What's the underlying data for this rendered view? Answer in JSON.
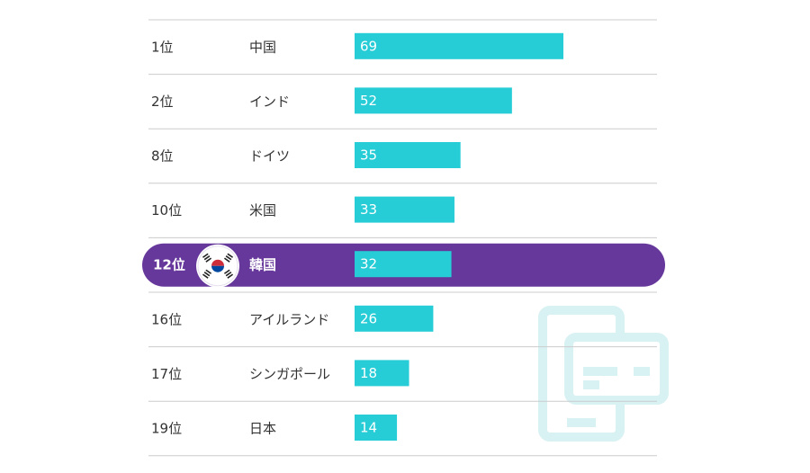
{
  "chart_data": {
    "type": "bar",
    "orientation": "horizontal",
    "ranks": [
      "1位",
      "2位",
      "8位",
      "10位",
      "12位",
      "16位",
      "17位",
      "19位"
    ],
    "categories": [
      "中国",
      "インド",
      "ドイツ",
      "米国",
      "韓国",
      "アイルランド",
      "シンガポール",
      "日本"
    ],
    "values": [
      69,
      52,
      35,
      33,
      32,
      26,
      18,
      14
    ],
    "value_labels": [
      "69",
      "52",
      "35",
      "33",
      "32",
      "26",
      "18",
      "14"
    ],
    "highlight_category": "韓国",
    "grid": "horizontal separators"
  },
  "colors": {
    "bar": "#26ccd6",
    "highlight": "#66389b",
    "separator": "#cccccc",
    "watermark": "#d8f1f3",
    "flag_red": "#cd2e3a",
    "flag_blue": "#0047a0"
  },
  "icons": {
    "flag": "korea-flag-icon",
    "watermark": "phone-card-icon"
  }
}
